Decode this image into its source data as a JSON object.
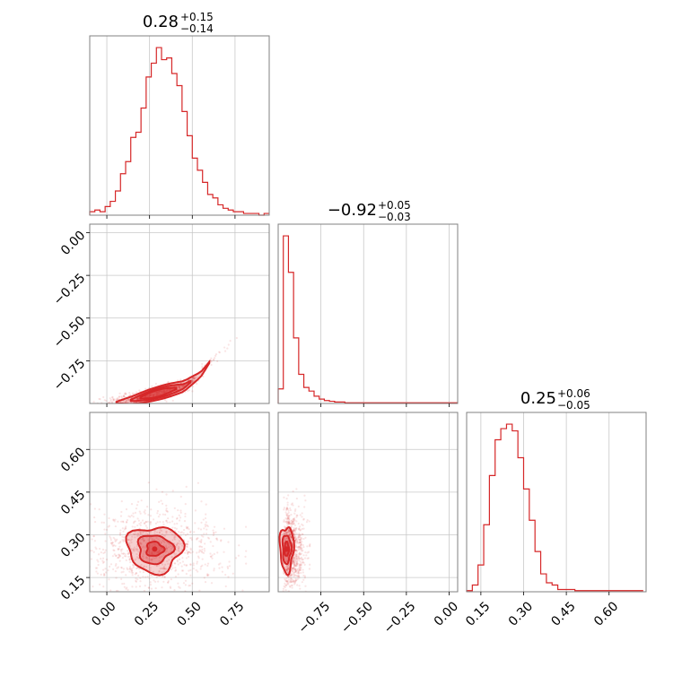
{
  "chart_data": {
    "type": "corner",
    "color": "#d62728",
    "grid": true,
    "parameters": [
      {
        "title": {
          "median": "0.28",
          "plus": "+0.15",
          "minus": "−0.14"
        },
        "range": [
          -0.1,
          0.95
        ],
        "ticks": [
          0.0,
          0.25,
          0.5,
          0.75
        ],
        "tick_labels": [
          "0.00",
          "0.25",
          "0.50",
          "0.75"
        ],
        "hist": {
          "edges": [
            -0.1,
            -0.07,
            -0.04,
            -0.01,
            0.02,
            0.05,
            0.08,
            0.11,
            0.14,
            0.17,
            0.2,
            0.23,
            0.26,
            0.29,
            0.32,
            0.35,
            0.38,
            0.41,
            0.44,
            0.47,
            0.5,
            0.53,
            0.56,
            0.59,
            0.62,
            0.65,
            0.68,
            0.71,
            0.74,
            0.77,
            0.8,
            0.83,
            0.86,
            0.89,
            0.92,
            0.95
          ],
          "counts": [
            2,
            3,
            2,
            5,
            8,
            14,
            24,
            31,
            45,
            48,
            62,
            80,
            88,
            97,
            90,
            91,
            82,
            75,
            60,
            46,
            33,
            26,
            19,
            12,
            10,
            6,
            4,
            3,
            2,
            2,
            1,
            1,
            1,
            0,
            1
          ]
        }
      },
      {
        "title": {
          "median": "−0.92",
          "plus": "+0.05",
          "minus": "−0.03"
        },
        "range": [
          -1.0,
          0.05
        ],
        "ticks": [
          -0.75,
          -0.5,
          -0.25,
          0.0
        ],
        "tick_labels": [
          "−0.75",
          "−0.50",
          "−0.25",
          "0.00"
        ],
        "hist": {
          "edges": [
            -1.0,
            -0.97,
            -0.94,
            -0.91,
            -0.88,
            -0.85,
            -0.82,
            -0.79,
            -0.76,
            -0.73,
            -0.7,
            -0.67,
            -0.64,
            -0.61,
            -0.58,
            -0.55,
            -0.52,
            -0.49,
            -0.46,
            -0.43,
            -0.4,
            -0.37,
            -0.34,
            -0.31,
            -0.28,
            -0.25,
            -0.22,
            -0.19,
            -0.16,
            -0.13,
            -0.1,
            -0.07,
            -0.04,
            -0.01,
            0.02,
            0.05
          ],
          "counts": [
            2,
            23,
            18,
            9,
            4,
            2.2,
            1.7,
            1.0,
            0.6,
            0.4,
            0.3,
            0.2,
            0.2,
            0.1,
            0.1,
            0.1,
            0.1,
            0.1,
            0.1,
            0.1,
            0.1,
            0.1,
            0.1,
            0.1,
            0.1,
            0.1,
            0.1,
            0.1,
            0.1,
            0.1,
            0.1,
            0.1,
            0.1,
            0.1,
            0.1
          ]
        }
      },
      {
        "title": {
          "median": "0.25",
          "plus": "+0.06",
          "minus": "−0.05"
        },
        "range": [
          0.1,
          0.73
        ],
        "ticks": [
          0.15,
          0.3,
          0.45,
          0.6
        ],
        "tick_labels": [
          "0.15",
          "0.30",
          "0.45",
          "0.60"
        ],
        "hist": {
          "edges": [
            0.1,
            0.12,
            0.14,
            0.16,
            0.18,
            0.2,
            0.22,
            0.24,
            0.26,
            0.28,
            0.3,
            0.32,
            0.34,
            0.36,
            0.38,
            0.4,
            0.42,
            0.44,
            0.46,
            0.48,
            0.5,
            0.52,
            0.54,
            0.56,
            0.58,
            0.6,
            0.62,
            0.64,
            0.66,
            0.68,
            0.7,
            0.72
          ],
          "counts": [
            0.05,
            0.3,
            1.2,
            3.0,
            5.2,
            6.8,
            7.3,
            7.5,
            7.2,
            6.0,
            4.6,
            3.2,
            1.8,
            0.8,
            0.4,
            0.3,
            0.1,
            0.1,
            0.1,
            0.05,
            0.05,
            0.05,
            0.05,
            0.05,
            0.05,
            0.05,
            0.05,
            0.05,
            0.05,
            0.05,
            0.05
          ]
        }
      }
    ],
    "pairs": [
      {
        "x_param": 0,
        "y_param": 1,
        "scatter_center": [
          0.28,
          -0.92
        ],
        "contour_curve": [
          [
            0.02,
            -1.0
          ],
          [
            0.15,
            -0.98
          ],
          [
            0.3,
            -0.94
          ],
          [
            0.45,
            -0.9
          ],
          [
            0.55,
            -0.83
          ],
          [
            0.6,
            -0.76
          ]
        ],
        "contour_levels": [
          0.16,
          0.1,
          0.06
        ]
      },
      {
        "x_param": 0,
        "y_param": 2,
        "scatter_center": [
          0.28,
          0.25
        ],
        "contour_center": [
          0.28,
          0.25
        ],
        "contour_half_widths": [
          [
            0.16,
            0.08
          ],
          [
            0.1,
            0.05
          ],
          [
            0.05,
            0.025
          ]
        ]
      },
      {
        "x_param": 1,
        "y_param": 2,
        "scatter_center": [
          -0.94,
          0.25
        ],
        "contour_center": [
          -0.95,
          0.25
        ],
        "contour_half_widths": [
          [
            0.04,
            0.08
          ],
          [
            0.025,
            0.05
          ],
          [
            0.012,
            0.025
          ]
        ]
      }
    ]
  }
}
